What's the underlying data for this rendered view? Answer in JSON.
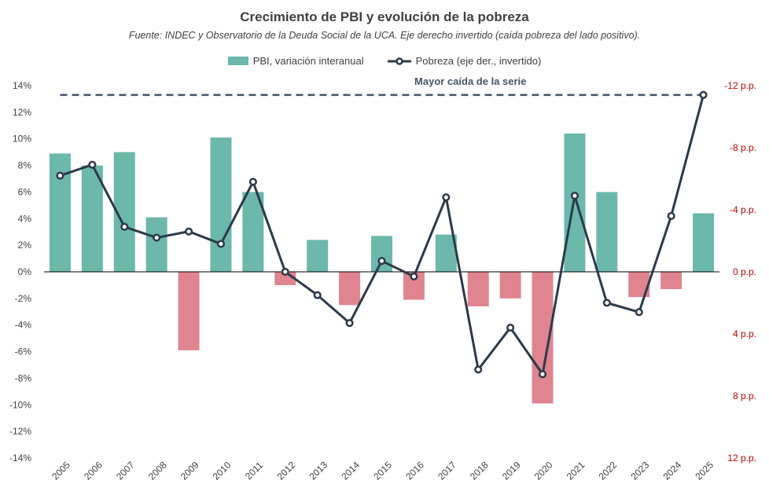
{
  "title": "Crecimiento de PBI y evolución de la pobreza",
  "subtitle": "Fuente: INDEC y Observatorio  de la Deuda Social de la UCA. Eje derecho invertido (caída pobreza del lado positivo).",
  "legend": {
    "bar_label": "PBI, variación interanual",
    "line_label": "Pobreza (eje der., invertido)"
  },
  "colors": {
    "positive_bar": "#6cb8ab",
    "negative_bar": "#e0848f",
    "line": "#2b3a4a",
    "dashed": "#44546a",
    "right_axis": "#c00000"
  },
  "chart_data": {
    "type": "bar+line",
    "title": "Crecimiento de PBI y evolución de la pobreza",
    "categories": [
      "2005",
      "2006",
      "2007",
      "2008",
      "2009",
      "2010",
      "2011",
      "2012",
      "2013",
      "2014",
      "2015",
      "2016",
      "2017",
      "2018",
      "2019",
      "2020",
      "2021",
      "2022",
      "2023",
      "2024",
      "2025"
    ],
    "series": [
      {
        "name": "PBI, variación interanual",
        "axis": "left",
        "type": "bar",
        "values": [
          8.9,
          8.0,
          9.0,
          4.1,
          -5.9,
          10.1,
          6.0,
          -1.0,
          2.4,
          -2.5,
          2.7,
          -2.1,
          2.8,
          -2.6,
          -2.0,
          -9.9,
          10.4,
          6.0,
          -1.9,
          -1.3,
          4.4
        ]
      },
      {
        "name": "Pobreza (eje der., invertido)",
        "axis": "right",
        "type": "line",
        "values": [
          -6.2,
          -6.9,
          -2.9,
          -2.2,
          -2.6,
          -1.8,
          -5.8,
          0.0,
          1.5,
          3.3,
          -0.7,
          0.3,
          -4.8,
          6.3,
          3.6,
          6.6,
          -4.9,
          2.0,
          2.6,
          -3.6,
          -11.4
        ]
      }
    ],
    "ylim_left": [
      -14,
      14
    ],
    "yticks_left": [
      14,
      12,
      10,
      8,
      6,
      4,
      2,
      0,
      -2,
      -4,
      -6,
      -8,
      -10,
      -12,
      -14
    ],
    "ytick_labels_left": [
      "14%",
      "12%",
      "10%",
      "8%",
      "6%",
      "4%",
      "2%",
      "0%",
      "-2%",
      "-4%",
      "-6%",
      "-8%",
      "-10%",
      "-12%",
      "-14%"
    ],
    "ylim_right": [
      12,
      -12
    ],
    "yticks_right": [
      -12,
      -8,
      -4,
      0,
      4,
      8,
      12
    ],
    "ytick_labels_right": [
      "-12 p.p.",
      "-8 p.p.",
      "-4 p.p.",
      "0 p.p.",
      "4 p.p.",
      "8 p.p.",
      "12 p.p."
    ],
    "reference_line": {
      "value_right": -11.4,
      "style": "dashed",
      "label": "Mayor caída de la serie"
    },
    "xlabel": "",
    "ylabel": ""
  }
}
